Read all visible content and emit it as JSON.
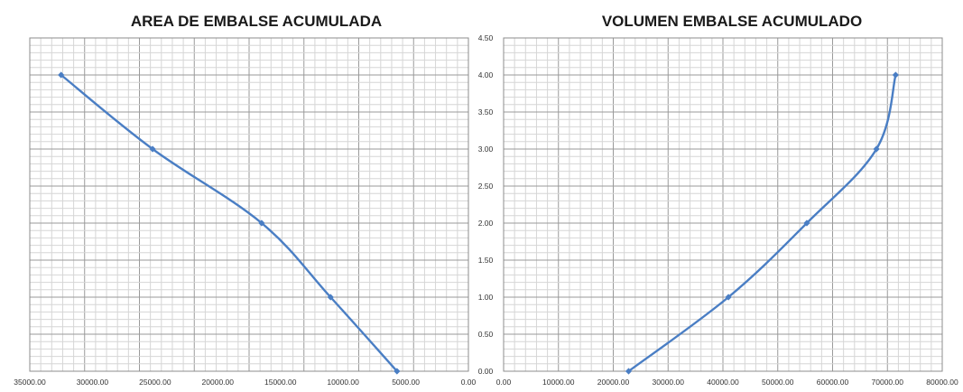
{
  "colors": {
    "series": "#4a7ec4",
    "grid_major": "#9a9a9a",
    "grid_minor": "#d6d6d6"
  },
  "chart_data": [
    {
      "type": "line",
      "title": "AREA DE EMBALSE ACUMULADA",
      "xlabel": "",
      "ylabel": "",
      "x_reversed": true,
      "xlim": [
        0,
        35000
      ],
      "ylim": [
        0,
        4.5
      ],
      "x_ticks": [
        "35000.00",
        "30000.00",
        "25000.00",
        "20000.00",
        "15000.00",
        "10000.00",
        "5000.00",
        "0.00"
      ],
      "y_ticks": [
        "0.00",
        "0.50",
        "1.00",
        "1.50",
        "2.00",
        "2.50",
        "3.00",
        "3.50",
        "4.00",
        "4.50"
      ],
      "grid": true,
      "series": [
        {
          "x": [
            5700,
            11000,
            16500,
            25200,
            32500
          ],
          "y": [
            0,
            1,
            2,
            3,
            4
          ]
        }
      ]
    },
    {
      "type": "line",
      "title": "VOLUMEN EMBALSE ACUMULADO",
      "xlabel": "",
      "ylabel": "",
      "x_reversed": false,
      "xlim": [
        0,
        80000
      ],
      "ylim": [
        0,
        4.5
      ],
      "x_ticks": [
        "0.00",
        "10000.00",
        "20000.00",
        "30000.00",
        "40000.00",
        "50000.00",
        "60000.00",
        "70000.00",
        "80000.00"
      ],
      "grid": true,
      "series": [
        {
          "x": [
            22800,
            41000,
            55300,
            68000,
            71500
          ],
          "y": [
            0,
            1,
            2,
            3,
            4
          ]
        }
      ]
    }
  ]
}
